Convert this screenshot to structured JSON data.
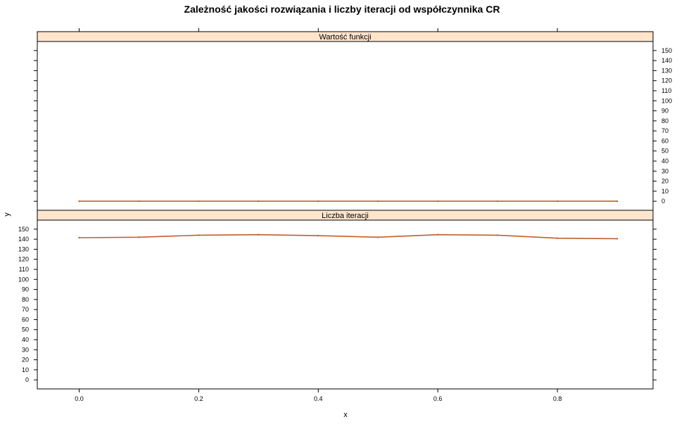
{
  "chart_data": {
    "type": "line",
    "title": "Zależność jakości rozwiązania i liczby iteracji od współczynnika CR",
    "xlabel": "x",
    "ylabel": "y",
    "xlim": [
      -0.07,
      0.96
    ],
    "ylim": [
      -9,
      159
    ],
    "x_ticks": [
      0.0,
      0.2,
      0.4,
      0.6,
      0.8
    ],
    "x_tick_labels": [
      "0.0",
      "0.2",
      "0.4",
      "0.6",
      "0.8"
    ],
    "y_ticks": [
      0,
      10,
      20,
      30,
      40,
      50,
      60,
      70,
      80,
      90,
      100,
      110,
      120,
      130,
      140,
      150
    ],
    "grid": false,
    "panels": [
      {
        "strip": "Wartość funkcji",
        "y_axis_side": "right",
        "x": [
          0.0,
          0.1,
          0.2,
          0.3,
          0.4,
          0.5,
          0.6,
          0.7,
          0.8,
          0.9
        ],
        "values": [
          0,
          0,
          0,
          0,
          0,
          0,
          0,
          0,
          0,
          0
        ]
      },
      {
        "strip": "Liczba iteracji",
        "y_axis_side": "left",
        "x": [
          0.0,
          0.1,
          0.2,
          0.3,
          0.4,
          0.5,
          0.6,
          0.7,
          0.8,
          0.9
        ],
        "values": [
          141.5,
          142,
          144,
          144.5,
          143.5,
          142,
          144.5,
          144,
          141,
          140.5
        ]
      }
    ],
    "colors": {
      "line": "#c0602a",
      "strip_bg": "#ffe5cc",
      "frame": "#000000"
    }
  }
}
